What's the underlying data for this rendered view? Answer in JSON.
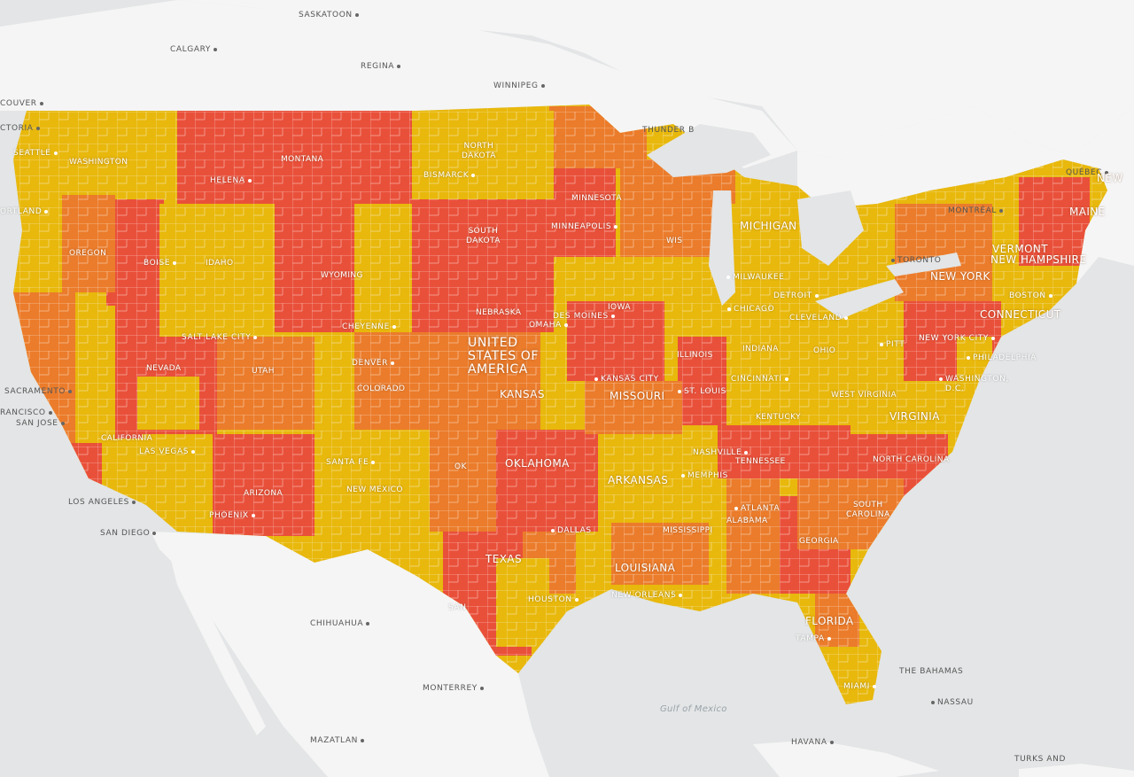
{
  "colors": {
    "water": "#e3e5e6",
    "land": "#f5f5f5",
    "low": "#e8b80c",
    "mid": "#eb7c2b",
    "high": "#e9503a",
    "county_lines": "#ffffff"
  },
  "country_label": [
    "UNITED",
    "STATES OF",
    "AMERICA"
  ],
  "water_labels": {
    "gulf": "Gulf of Mexico"
  },
  "foreign_cities": {
    "saskatoon": "SASKATOON",
    "calgary": "CALGARY",
    "regina": "REGINA",
    "winnipeg": "WINNIPEG",
    "vancouver": "COUVER",
    "victoria": "CTORIA",
    "thunder_bay": "THUNDER B",
    "quebec": "QUÉBEC",
    "montreal": "MONTRÉAL",
    "toronto": "TORONTO",
    "chihuahua": "CHIHUAHUA",
    "monterrey": "MONTERREY",
    "mazatlan": "MAZATLAN",
    "havana": "HAVANA",
    "nassau": "NASSAU",
    "bahamas": "THE BAHAMAS",
    "turks": "TURKS AND"
  },
  "us_cities": {
    "seattle": "SEATTLE",
    "portland": "ORTLAND",
    "boise": "BOISE",
    "helena": "HELENA",
    "bismarck": "BISMARCK",
    "minneapolis": "MINNEAPOLIS",
    "milwaukee": "MILWAUKEE",
    "chicago": "CHICAGO",
    "detroit": "DETROIT",
    "cleveland": "CLEVELAND",
    "boston": "BOSTON",
    "pittsburgh": "PITT",
    "new_york_city": "NEW YORK CITY",
    "philadelphia": "PHILADELPHIA",
    "washington_dc_1": "WASHINGTON,",
    "washington_dc_2": "D.C.",
    "des_moines": "DES MOINES",
    "omaha": "OMAHA",
    "kansas_city": "KANSAS CITY",
    "st_louis": "ST. LOUIS",
    "cincinnati": "CINCINNATI",
    "nashville": "NASHVILLE",
    "memphis": "MEMPHIS",
    "atlanta": "ATLANTA",
    "dallas": "DALLAS",
    "houston": "HOUSTON",
    "san_antonio": "SAN",
    "new_orleans": "NEW ORLEANS",
    "tampa": "TAMPA",
    "miami": "MIAMI",
    "denver": "DENVER",
    "cheyenne": "CHEYENNE",
    "salt_lake_city": "SALT LAKE CITY",
    "santa_fe": "SANTA FE",
    "phoenix": "PHOENIX",
    "las_vegas": "LAS VEGAS",
    "los_angeles": "LOS ANGELES",
    "san_diego": "SAN DIEGO",
    "sacramento": "SACRAMENTO",
    "san_francisco": "RANCISCO",
    "san_jose": "SAN JOSE"
  },
  "states": {
    "washington": "WASHINGTON",
    "oregon": "OREGON",
    "california": "CALIFORNIA",
    "nevada": "NEVADA",
    "idaho": "IDAHO",
    "montana": "MONTANA",
    "wyoming": "WYOMING",
    "utah": "UTAH",
    "arizona": "ARIZONA",
    "colorado": "COLORADO",
    "new_mexico": "NEW MEXICO",
    "north_dakota_1": "NORTH",
    "north_dakota_2": "DAKOTA",
    "south_dakota_1": "SOUTH",
    "south_dakota_2": "DAKOTA",
    "nebraska": "NEBRASKA",
    "kansas": "KANSAS",
    "oklahoma": "OKLAHOMA",
    "ok_abbr": "OK",
    "texas": "TEXAS",
    "minnesota": "MINNESOTA",
    "iowa": "IOWA",
    "missouri": "MISSOURI",
    "arkansas": "ARKANSAS",
    "louisiana": "LOUISIANA",
    "wisconsin": "WIS",
    "illinois": "ILLINOIS",
    "michigan": "MICHIGAN",
    "indiana": "INDIANA",
    "ohio": "OHIO",
    "kentucky": "KENTUCKY",
    "tennessee": "TENNESSEE",
    "mississippi": "MISSISSIPPI",
    "alabama": "ALABAMA",
    "georgia": "GEORGIA",
    "florida": "FLORIDA",
    "south_carolina_1": "SOUTH",
    "south_carolina_2": "CAROLINA",
    "north_carolina": "NORTH CAROLINA",
    "virginia": "VIRGINIA",
    "west_virginia": "WEST VIRGINIA",
    "new_york": "NEW YORK",
    "vermont": "VERMONT",
    "new_hampshire": "NEW HAMPSHIRE",
    "maine": "MAINE",
    "new_brunswick": "NEW",
    "connecticut": "CONNECTICUT"
  }
}
